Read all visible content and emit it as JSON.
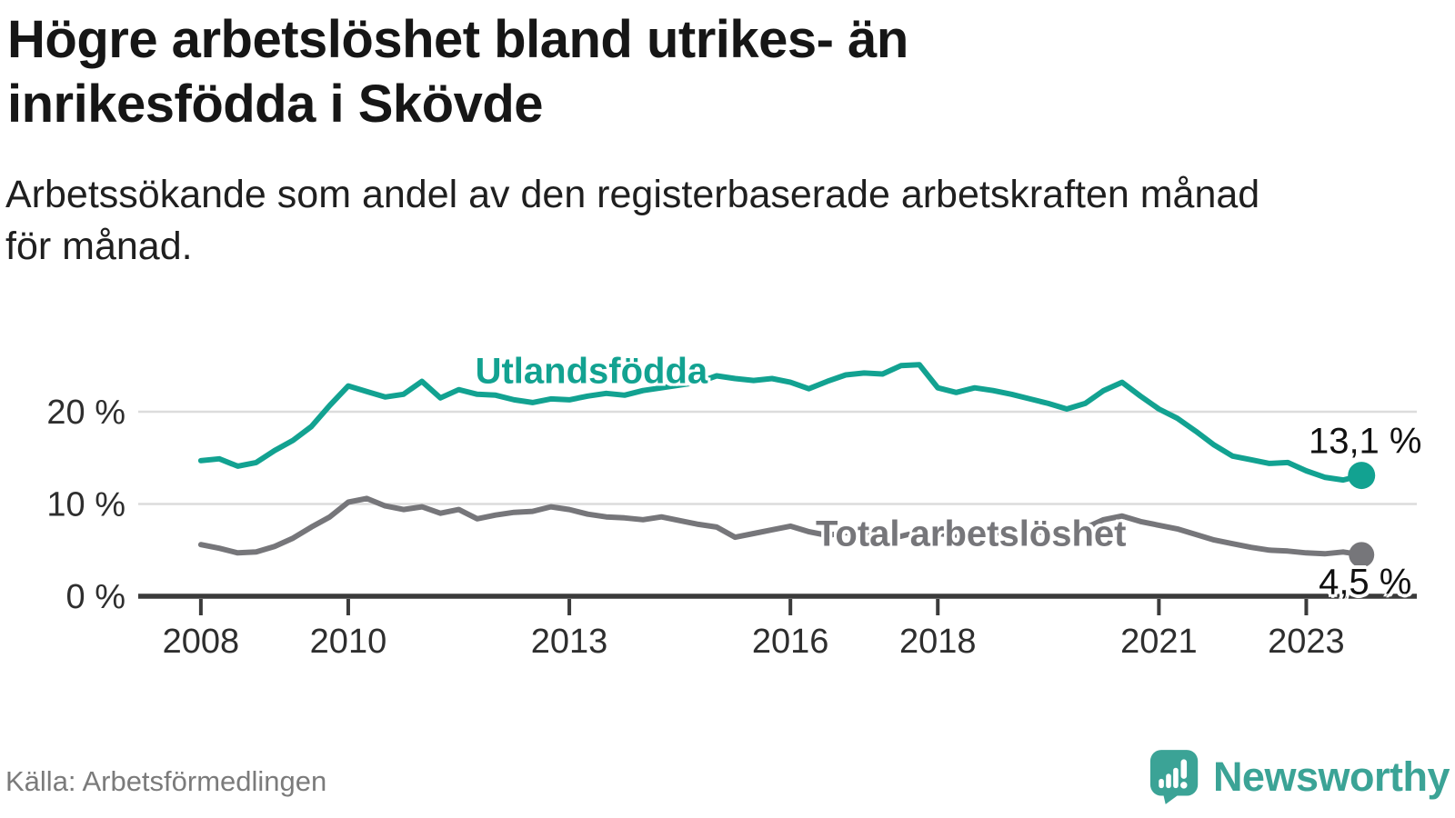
{
  "header": {
    "title_lines": [
      "Högre arbetslöshet bland utrikes- än",
      "inrikesfödda i Skövde"
    ],
    "subtitle_lines": [
      "Arbetssökande som andel av den registerbaserade arbetskraften månad",
      "för månad."
    ]
  },
  "chart_data": {
    "type": "line",
    "x_unit": "decimal_year_monthly_series",
    "x_start": 2008.0,
    "x_step": 0.25,
    "x_end": 2023.75,
    "xlim": [
      2007.15,
      2024.5
    ],
    "ylim": [
      0,
      27.2
    ],
    "grid": "horizontal",
    "x_ticks": [
      2008,
      2010,
      2013,
      2016,
      2018,
      2021,
      2023
    ],
    "y_ticks": [
      0,
      10,
      20
    ],
    "y_tick_labels": [
      "0 %",
      "10 %",
      "20 %"
    ],
    "series": [
      {
        "name": "Utlandsfödda",
        "color": "#12A291",
        "end_value_label": "13,1 %",
        "end_value": 13.1,
        "label_anchor": {
          "x": 2013.3,
          "y": 24.3
        },
        "values": [
          14.7,
          14.9,
          14.1,
          14.5,
          15.8,
          16.9,
          18.4,
          20.7,
          22.8,
          22.2,
          21.6,
          21.9,
          23.3,
          21.5,
          22.4,
          21.9,
          21.8,
          21.3,
          21.0,
          21.4,
          21.3,
          21.7,
          22.0,
          21.8,
          22.3,
          22.6,
          22.9,
          23.2,
          23.9,
          23.6,
          23.4,
          23.6,
          23.2,
          22.5,
          23.3,
          24.0,
          24.2,
          24.1,
          25.0,
          25.1,
          22.6,
          22.1,
          22.6,
          22.3,
          21.9,
          21.4,
          20.9,
          20.3,
          20.9,
          22.3,
          23.2,
          21.7,
          20.3,
          19.3,
          17.9,
          16.4,
          15.2,
          14.8,
          14.4,
          14.5,
          13.6,
          12.9,
          12.6,
          13.1
        ]
      },
      {
        "name": "Total arbetslöshet",
        "color": "#76767A",
        "end_value_label": "4,5 %",
        "end_value": 4.5,
        "label_anchor": {
          "x": 2018.45,
          "y": 6.7
        },
        "values": [
          5.6,
          5.2,
          4.7,
          4.8,
          5.4,
          6.3,
          7.5,
          8.6,
          10.2,
          10.6,
          9.8,
          9.4,
          9.7,
          9.0,
          9.4,
          8.4,
          8.8,
          9.1,
          9.2,
          9.7,
          9.4,
          8.9,
          8.6,
          8.5,
          8.3,
          8.6,
          8.2,
          7.8,
          7.5,
          6.4,
          6.8,
          7.2,
          7.6,
          7.0,
          6.6,
          6.9,
          6.7,
          6.3,
          6.5,
          7.0,
          6.8,
          6.6,
          6.7,
          6.9,
          6.8,
          6.9,
          7.0,
          7.1,
          7.4,
          8.3,
          8.7,
          8.1,
          7.7,
          7.3,
          6.7,
          6.1,
          5.7,
          5.3,
          5.0,
          4.9,
          4.7,
          4.6,
          4.8,
          4.5
        ]
      }
    ]
  },
  "footer": {
    "source": "Källa: Arbetsförmedlingen",
    "logo_text": "Newsworthy",
    "logo_color": "#3BA396"
  }
}
